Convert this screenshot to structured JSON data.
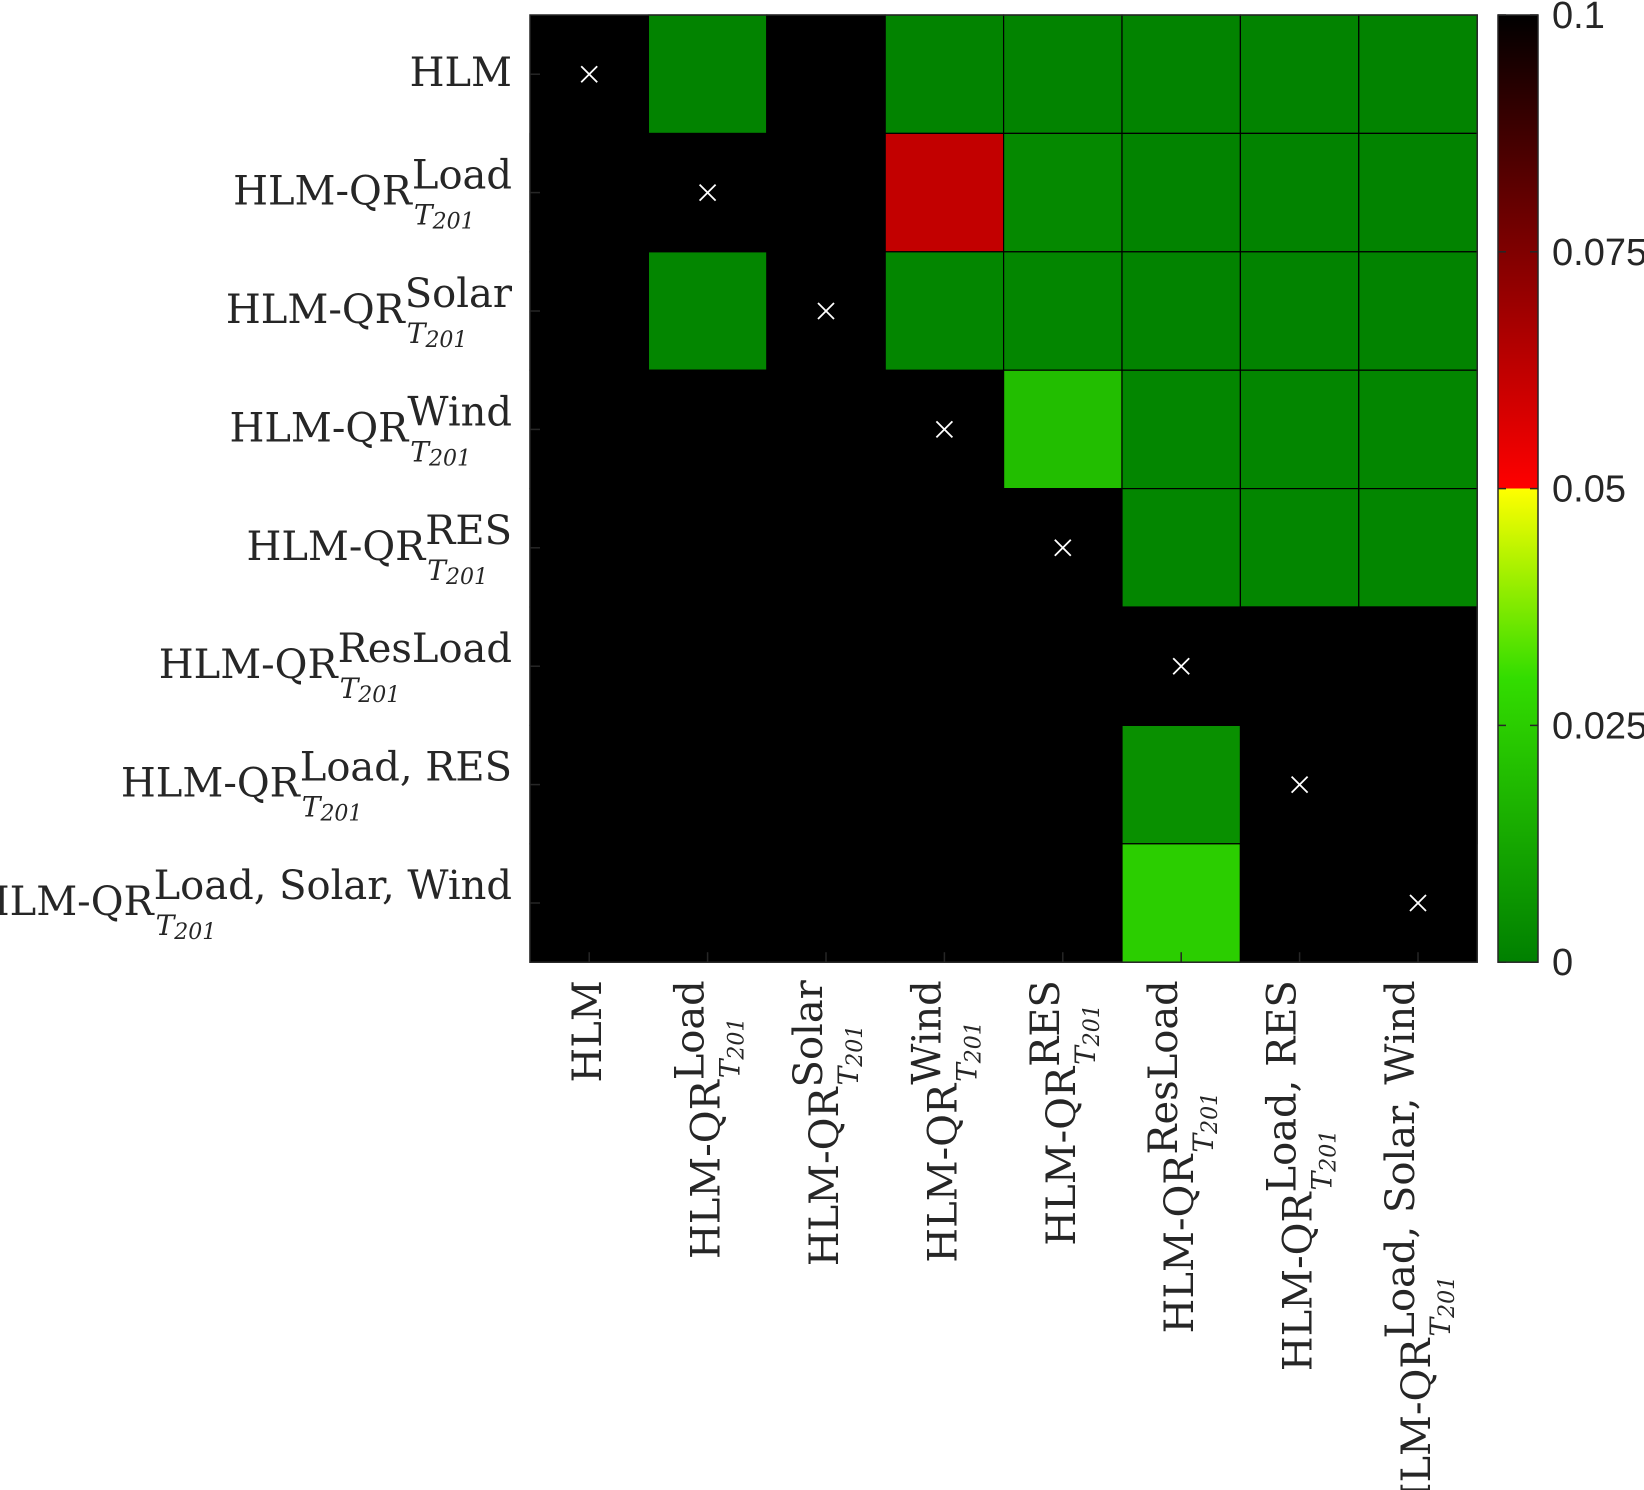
{
  "chart_data": {
    "type": "heatmap",
    "title": "",
    "xlabel": "",
    "ylabel": "",
    "labels": [
      {
        "base": "HLM",
        "sup": "",
        "sub": ""
      },
      {
        "base": "HLM-QR",
        "sup": "Load",
        "sub": "T201"
      },
      {
        "base": "HLM-QR",
        "sup": "Solar",
        "sub": "T201"
      },
      {
        "base": "HLM-QR",
        "sup": "Wind",
        "sub": "T201"
      },
      {
        "base": "HLM-QR",
        "sup": "RES",
        "sub": "T201"
      },
      {
        "base": "HLM-QR",
        "sup": "ResLoad",
        "sub": "T201"
      },
      {
        "base": "HLM-QR",
        "sup": "Load, RES",
        "sub": "T201"
      },
      {
        "base": "HLM-QR",
        "sup": "Load, Solar, Wind",
        "sub": "T201"
      }
    ],
    "values": [
      [
        null,
        0.001,
        0.1,
        0.001,
        0.001,
        0.001,
        0.001,
        0.001
      ],
      [
        0.1,
        null,
        0.1,
        0.062,
        0.003,
        0.001,
        0.001,
        0.001
      ],
      [
        0.1,
        0.002,
        null,
        0.002,
        0.002,
        0.001,
        0.001,
        0.001
      ],
      [
        0.1,
        0.1,
        0.1,
        null,
        0.02,
        0.002,
        0.002,
        0.002
      ],
      [
        0.1,
        0.1,
        0.1,
        0.1,
        null,
        0.002,
        0.002,
        0.002
      ],
      [
        0.1,
        0.1,
        0.1,
        0.1,
        0.1,
        null,
        0.1,
        0.1
      ],
      [
        0.1,
        0.1,
        0.1,
        0.1,
        0.1,
        0.005,
        null,
        0.1
      ],
      [
        0.1,
        0.1,
        0.1,
        0.1,
        0.1,
        0.025,
        0.1,
        null
      ]
    ],
    "diagonal_marker": "×",
    "colorbar": {
      "min": 0,
      "max": 0.1,
      "ticks": [
        "0",
        "0.025",
        "0.05",
        "0.075",
        "0.1"
      ],
      "colors": {
        "low": "#008000",
        "mid_low": "#33dd00",
        "yellow": "#ffff00",
        "red": "#ff0000",
        "high": "#000000"
      }
    },
    "grid": true,
    "legend": "colorbar-right"
  }
}
